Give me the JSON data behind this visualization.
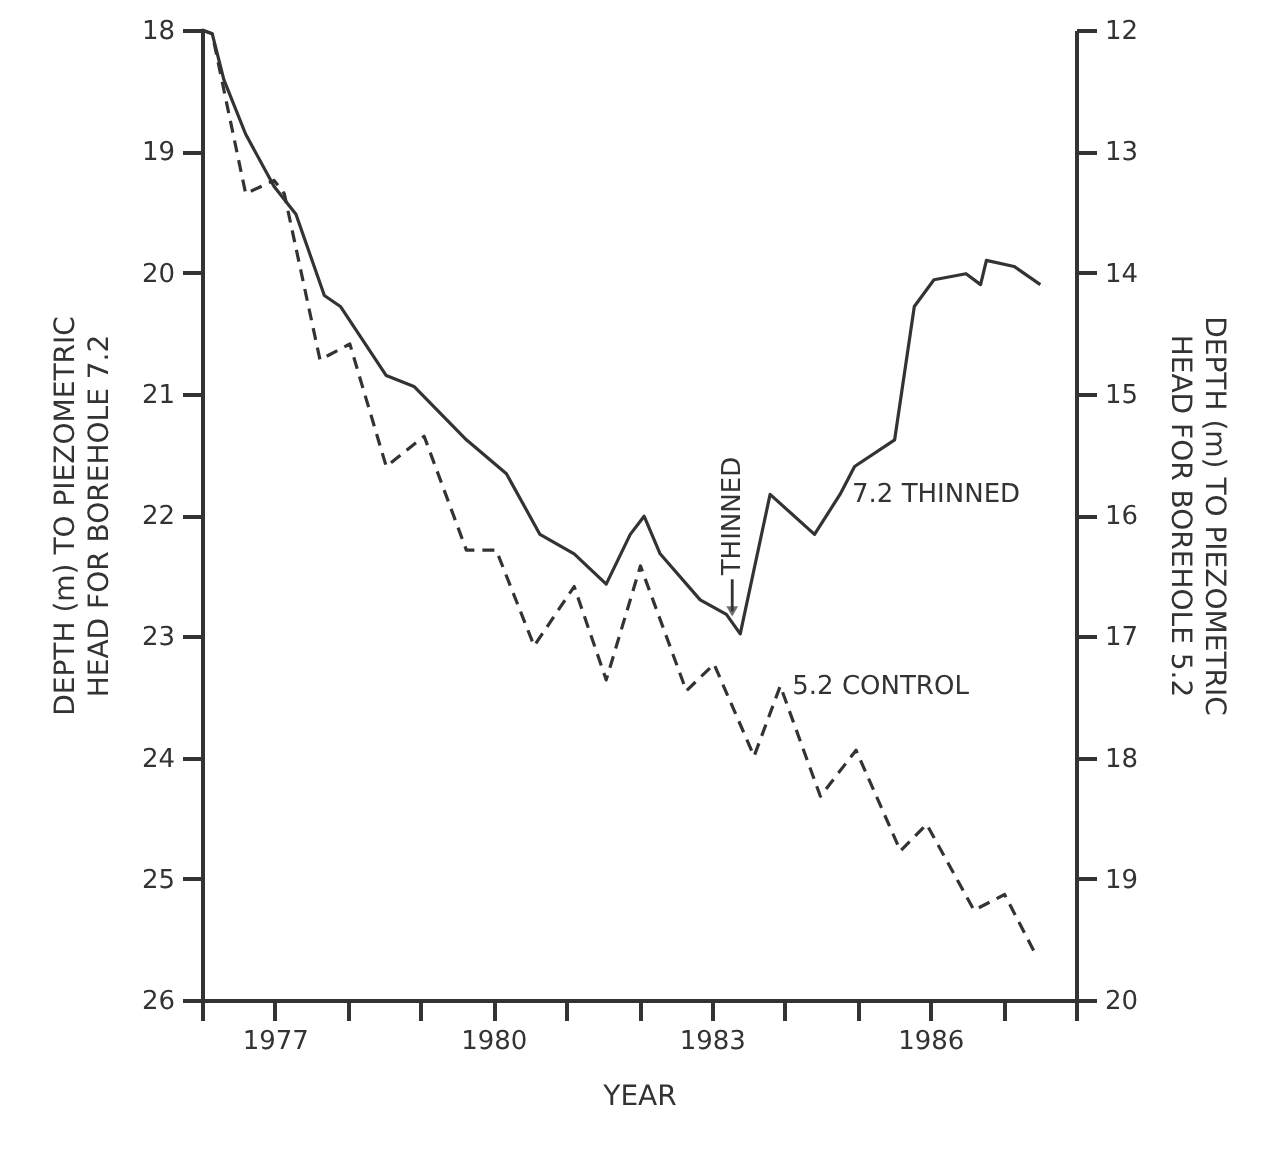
{
  "chart_data": {
    "type": "line",
    "xlabel": "YEAR",
    "ylabel": "DEPTH (m) TO PIEZOMETRIC\nHEAD FOR BOREHOLE 7.2",
    "y2label": "DEPTH (m) TO PIEZOMETRIC\nHEAD FOR BOREHOLE 5.2",
    "xlim": [
      1976,
      1988
    ],
    "xticks": [
      {
        "value": 1976,
        "label": null
      },
      1977,
      {
        "value": 1978,
        "label": null
      },
      {
        "value": 1979,
        "label": null
      },
      1980,
      {
        "value": 1981,
        "label": null
      },
      {
        "value": 1982,
        "label": null
      },
      1983,
      {
        "value": 1984,
        "label": null
      },
      {
        "value": 1985,
        "label": null
      },
      1986,
      {
        "value": 1987,
        "label": null
      },
      {
        "value": 1988,
        "label": null
      }
    ],
    "ylim": [
      26,
      18
    ],
    "yticks": [
      18,
      19,
      20,
      21,
      22,
      23,
      24,
      25,
      26
    ],
    "y2lim": [
      20,
      12
    ],
    "y2ticks": [
      12,
      13,
      14,
      15,
      16,
      17,
      18,
      19,
      20
    ],
    "grid": false,
    "series": [
      {
        "name": "7.2 THINNED",
        "color": "#333333",
        "line_style": "solid",
        "x": [
          1976.0,
          1976.14,
          1976.3,
          1976.6,
          1976.99,
          1977.29,
          1977.68,
          1977.9,
          1978.53,
          1978.91,
          1979.63,
          1980.18,
          1980.64,
          1981.11,
          1981.55,
          1981.88,
          1982.07,
          1982.29,
          1982.84,
          1983.2,
          1983.39,
          1983.8,
          1984.41,
          1984.76,
          1984.96,
          1985.51,
          1985.78,
          1986.05,
          1986.49,
          1986.69,
          1986.77,
          1987.15,
          1987.51
        ],
        "values": [
          18.0,
          18.03,
          18.41,
          18.86,
          19.29,
          19.52,
          20.19,
          20.28,
          20.85,
          20.94,
          21.38,
          21.66,
          22.16,
          22.32,
          22.57,
          22.16,
          22.01,
          22.32,
          22.7,
          22.82,
          22.98,
          21.83,
          22.16,
          21.83,
          21.6,
          21.38,
          20.28,
          20.06,
          20.01,
          20.1,
          19.9,
          19.95,
          20.1
        ]
      },
      {
        "name": "5.2 CONTROL",
        "color": "#333333",
        "line_style": "dashed",
        "axis": "y2",
        "x": [
          1976.0,
          1976.14,
          1976.33,
          1976.6,
          1976.99,
          1977.13,
          1977.62,
          1978.03,
          1978.53,
          1979.05,
          1979.63,
          1980.04,
          1980.56,
          1981.11,
          1981.55,
          1982.02,
          1982.65,
          1983.03,
          1983.58,
          1983.94,
          1984.49,
          1984.98,
          1985.59,
          1985.95,
          1986.6,
          1987.02,
          1987.46
        ],
        "values": [
          12.0,
          12.03,
          12.58,
          13.35,
          13.24,
          13.35,
          14.72,
          14.59,
          15.6,
          15.35,
          16.29,
          16.29,
          17.08,
          16.59,
          17.36,
          16.42,
          17.45,
          17.23,
          17.99,
          17.41,
          18.32,
          17.94,
          18.77,
          18.55,
          19.26,
          19.13,
          19.64
        ]
      }
    ],
    "annotations": [
      {
        "text": "THINNED",
        "x": 1983.28,
        "y": 22.86
      }
    ]
  }
}
